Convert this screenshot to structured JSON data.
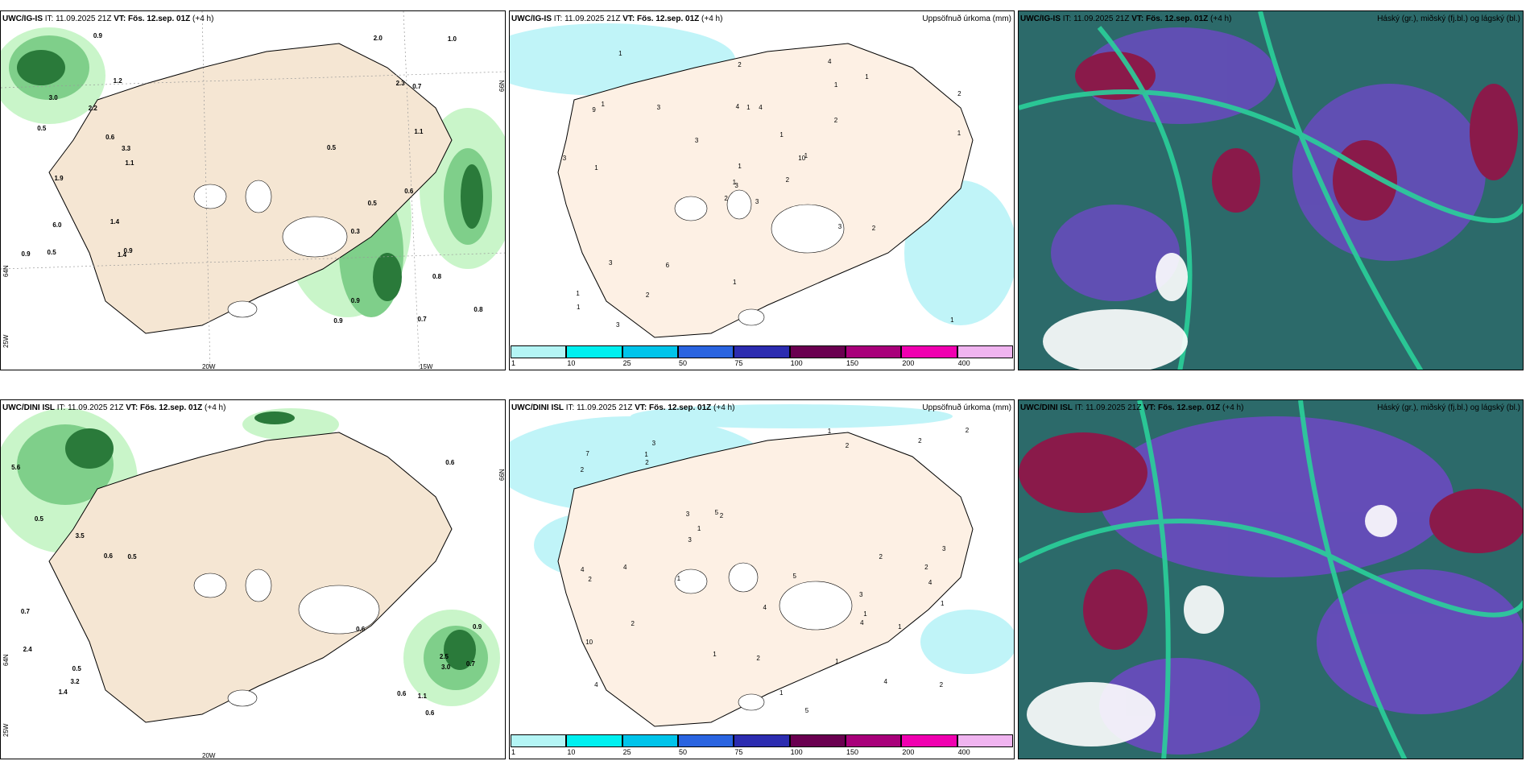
{
  "rows": [
    {
      "panels": [
        {
          "model": "UWC/IG-IS",
          "it": "IT: 11.09.2025 21Z",
          "vt_label": "VT:",
          "vt": "Fös. 12.sep. 01Z",
          "lead": "(+4 h)",
          "field": ""
        },
        {
          "model": "UWC/IG-IS",
          "it": "IT: 11.09.2025 21Z",
          "vt_label": "VT:",
          "vt": "Fös. 12.sep. 01Z",
          "lead": "(+4 h)",
          "field": "Uppsöfnuð úrkoma (mm)"
        },
        {
          "model": "UWC/IG-IS",
          "it": "IT: 11.09.2025 21Z",
          "vt_label": "VT:",
          "vt": "Fös. 12.sep. 01Z",
          "lead": "(+4 h)",
          "field": "Háský (gr.), miðský (fj.bl.) og lágský (bl.)"
        }
      ]
    },
    {
      "panels": [
        {
          "model": "UWC/DINI ISL",
          "it": "IT: 11.09.2025 21Z",
          "vt_label": "VT:",
          "vt": "Fös. 12.sep. 01Z",
          "lead": "(+4 h)",
          "field": ""
        },
        {
          "model": "UWC/DINI ISL",
          "it": "IT: 11.09.2025 21Z",
          "vt_label": "VT:",
          "vt": "Fös. 12.sep. 01Z",
          "lead": "(+4 h)",
          "field": "Uppsöfnuð úrkoma (mm)"
        },
        {
          "model": "UWC/DINI ISL",
          "it": "IT: 11.09.2025 21Z",
          "vt_label": "VT:",
          "vt": "Fös. 12.sep. 01Z",
          "lead": "(+4 h)",
          "field": "Háský (gr.), miðský (fj.bl.) og lágský (bl.)"
        }
      ]
    }
  ],
  "axis_labels": {
    "lon_25": "25W",
    "lon_20": "20W",
    "lon_15": "15W",
    "lat_64": "64N",
    "lat_66": "66N"
  },
  "colorbar": {
    "ticks": [
      "1",
      "10",
      "25",
      "50",
      "75",
      "100",
      "150",
      "200",
      "400"
    ],
    "colors": [
      "#b4f5f5",
      "#00f0f0",
      "#00c4ea",
      "#2a64e0",
      "#2c2cb0",
      "#6a0050",
      "#a8007a",
      "#f000b0",
      "#f0b4f0"
    ]
  },
  "precip_values_top": [
    "3",
    "9",
    "3",
    "1",
    "10",
    "6",
    "4",
    "4",
    "1",
    "2",
    "1",
    "1",
    "1",
    "2",
    "2",
    "2",
    "3",
    "4",
    "1",
    "3",
    "3",
    "1",
    "2",
    "1",
    "1",
    "2",
    "1",
    "2",
    "3",
    "3",
    "1",
    "1",
    "1",
    "1",
    "3",
    "1"
  ],
  "precip_values_bottom": [
    "3",
    "4",
    "4",
    "3",
    "2",
    "4",
    "10",
    "2",
    "3",
    "5",
    "2",
    "4",
    "7",
    "2",
    "1",
    "3",
    "4",
    "5",
    "5",
    "2",
    "2",
    "2",
    "3",
    "1",
    "1",
    "1",
    "1",
    "2",
    "2",
    "2",
    "1",
    "1",
    "1",
    "1",
    "2",
    "1",
    "4",
    "4",
    "2"
  ],
  "wind_labels_top": [
    "3.0",
    "3.3",
    "2.2",
    "1.1",
    "1.9",
    "0.9",
    "6.0",
    "0.9",
    "1.4",
    "1.2",
    "0.5",
    "1.4",
    "0.6",
    "0.5",
    "0.9",
    "0.6",
    "0.5",
    "0.5",
    "2.0",
    "2.3",
    "0.8",
    "0.7",
    "0.9",
    "0.3",
    "1.1",
    "1.0",
    "0.9",
    "0.8",
    "0.7"
  ],
  "wind_labels_bottom": [
    "1.4",
    "0.5",
    "3.5",
    "5.6",
    "0.5",
    "2.4",
    "3.2",
    "0.7",
    "0.6",
    "0.5",
    "0.6",
    "0.7",
    "0.6",
    "0.6",
    "0.6",
    "1.1",
    "2.5",
    "3.0",
    "0.9"
  ],
  "colors": {
    "land": "#f5e6d3",
    "precip_light": "#c9f5c9",
    "precip_mid": "#7fcf8a",
    "precip_dark": "#2a7a3a",
    "precip_darkest": "#0a4a1a",
    "cloud_high": "#2c6a6a",
    "cloud_mid": "#6a4ac0",
    "cloud_low": "#8a1a4a",
    "cloud_edge": "#2ad09a",
    "water_cyan": "#c0f4f8"
  }
}
